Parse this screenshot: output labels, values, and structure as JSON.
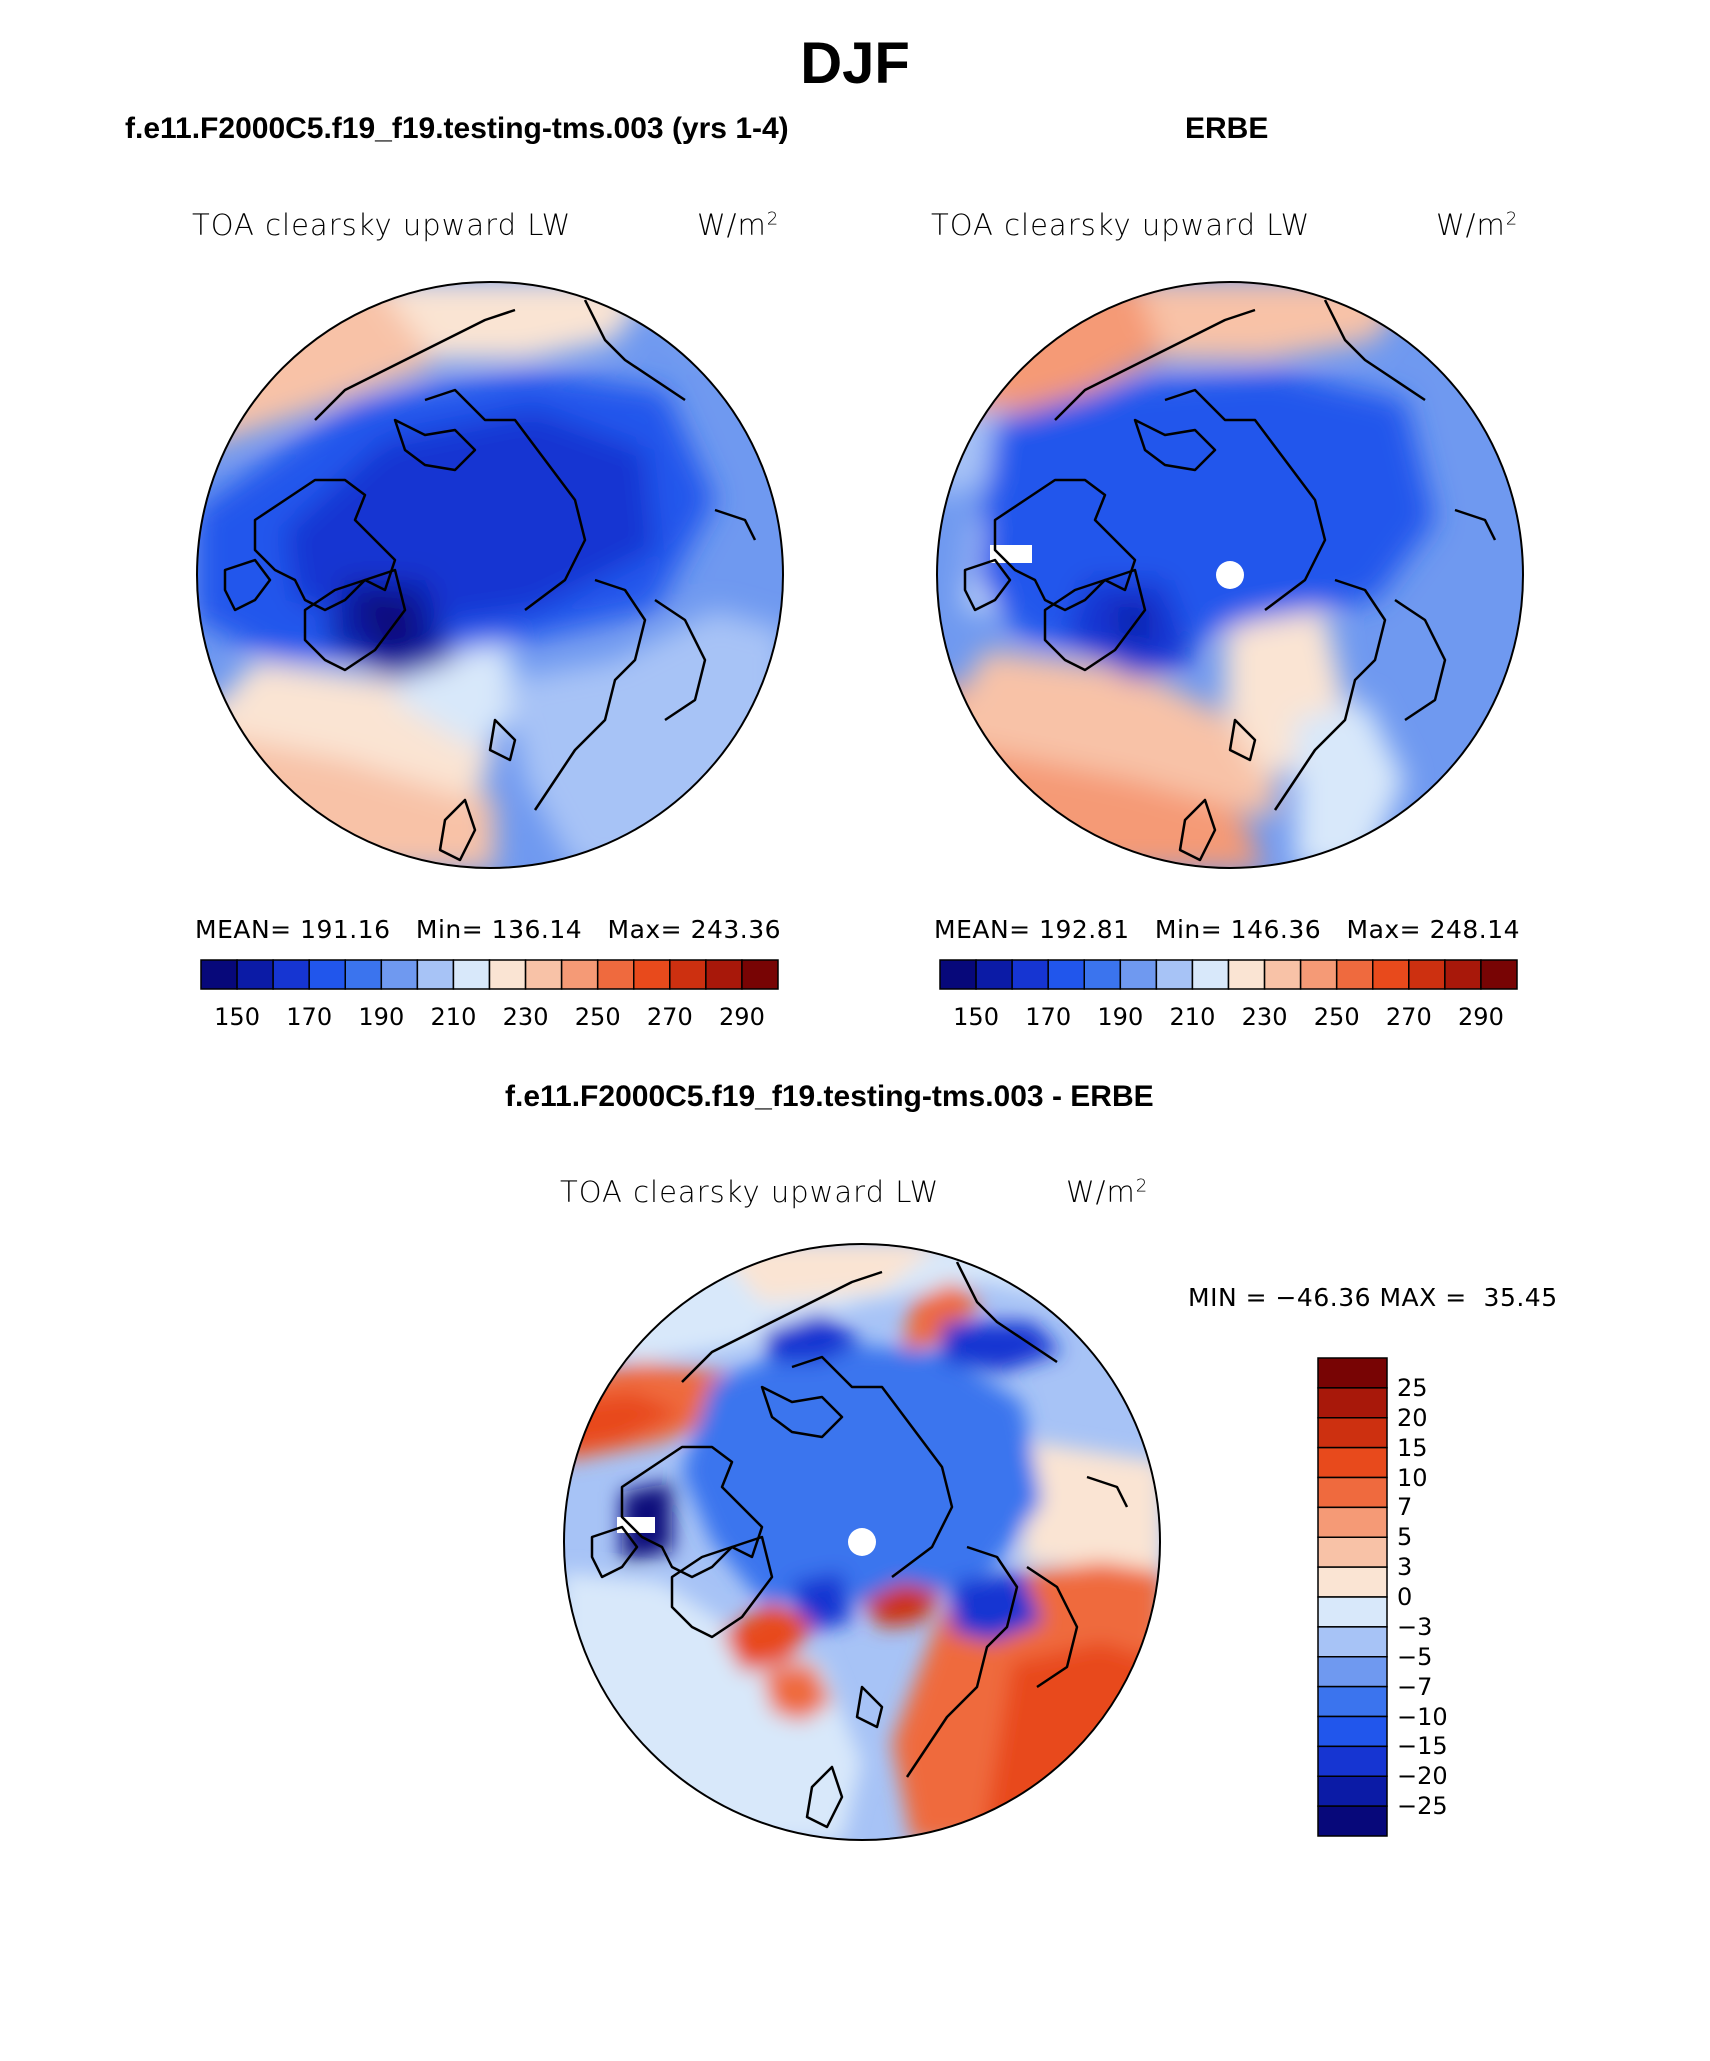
{
  "title": "DJF",
  "panels": [
    {
      "case_label": "f.e11.F2000C5.f19_f19.testing-tms.003 (yrs 1-4)",
      "field": "TOA clearsky upward LW",
      "units_base": "W/m",
      "units_exp": "2",
      "stats": {
        "mean_label": "MEAN=",
        "mean": "191.16",
        "min_label": "Min=",
        "min": "136.14",
        "max_label": "Max=",
        "max": "243.36"
      }
    },
    {
      "case_label": "ERBE",
      "field": "TOA clearsky upward LW",
      "units_base": "W/m",
      "units_exp": "2",
      "stats": {
        "mean_label": "MEAN=",
        "mean": "192.81",
        "min_label": "Min=",
        "min": "146.36",
        "max_label": "Max=",
        "max": "248.14"
      }
    }
  ],
  "diff_panel": {
    "case_label": "f.e11.F2000C5.f19_f19.testing-tms.003 - ERBE",
    "field": "TOA clearsky upward LW",
    "units_base": "W/m",
    "units_exp": "2",
    "minmax": "MIN = −46.36 MAX =  35.45"
  },
  "colorbar_abs": {
    "tick_labels": [
      "150",
      "170",
      "190",
      "210",
      "230",
      "250",
      "270",
      "290"
    ],
    "colors": [
      "#07087a",
      "#0b1ba6",
      "#1635d2",
      "#2156ec",
      "#3b74ee",
      "#6f99f0",
      "#a7c3f6",
      "#d8e8fa",
      "#fae4d3",
      "#f8c2a7",
      "#f59a76",
      "#ef6a3e",
      "#e84a1c",
      "#cd3010",
      "#a8180a",
      "#780404"
    ]
  },
  "colorbar_diff": {
    "tick_labels": [
      "25",
      "20",
      "15",
      "10",
      "7",
      "5",
      "3",
      "0",
      "−3",
      "−5",
      "−7",
      "−10",
      "−15",
      "−20",
      "−25"
    ],
    "colors": [
      "#780404",
      "#a8180a",
      "#cd3010",
      "#e84a1c",
      "#ef6a3e",
      "#f59a76",
      "#f8c2a7",
      "#fae4d3",
      "#d8e8fa",
      "#a7c3f6",
      "#6f99f0",
      "#3b74ee",
      "#2156ec",
      "#1635d2",
      "#0b1ba6",
      "#07087a"
    ]
  }
}
